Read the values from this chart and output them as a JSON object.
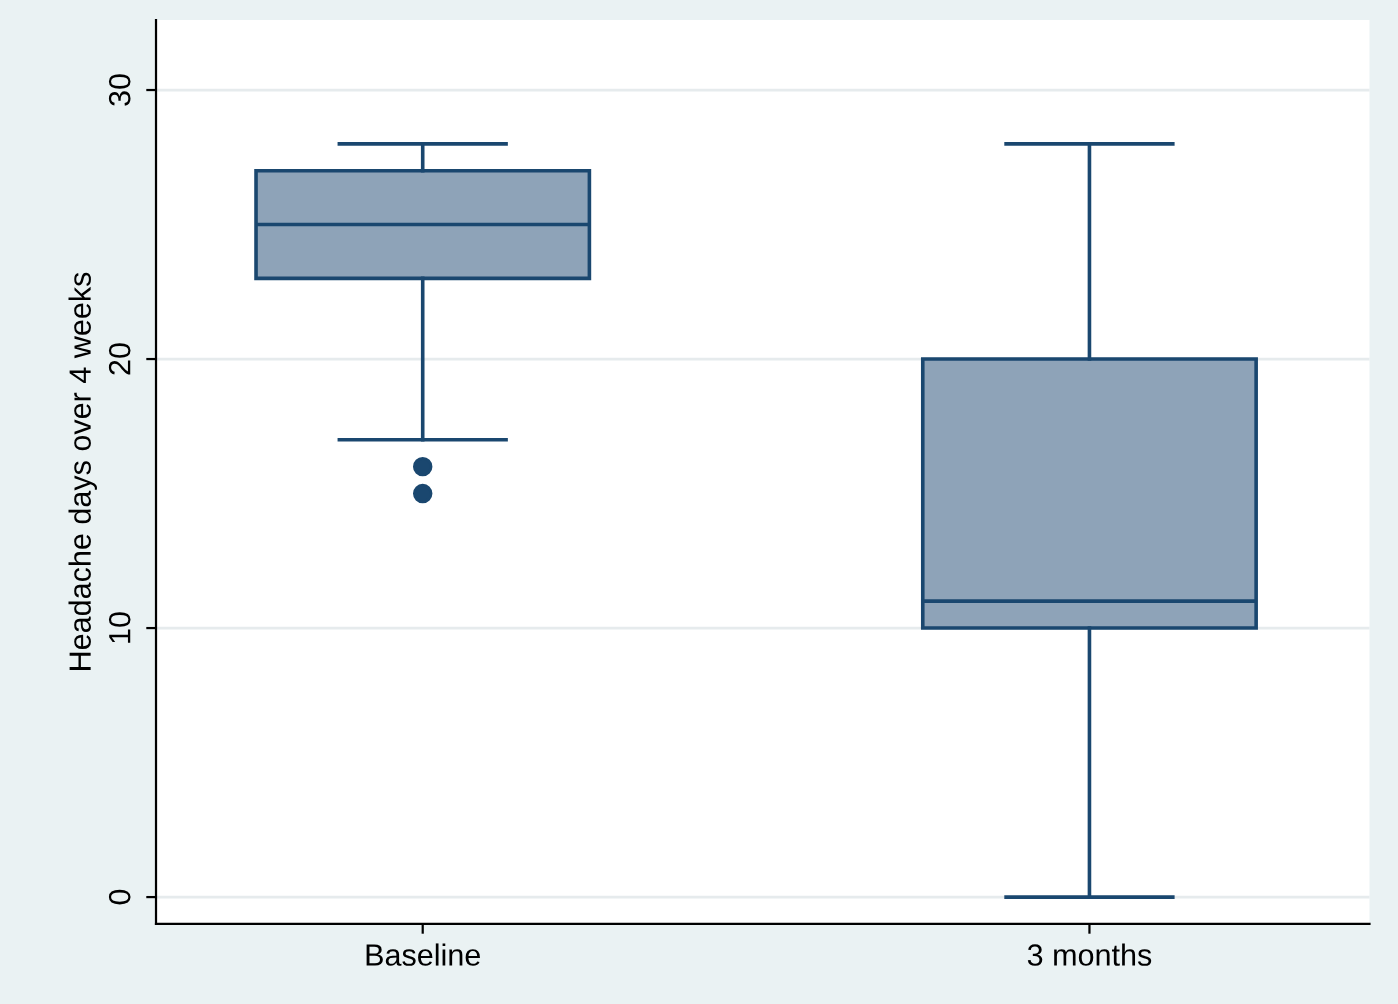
{
  "chart_data": {
    "type": "box",
    "ylabel": "Headache days over 4 weeks",
    "categories": [
      "Baseline",
      "3 months"
    ],
    "boxes": [
      {
        "low": 17,
        "q1": 23,
        "median": 25,
        "q3": 27,
        "high": 28,
        "outliers": [
          15,
          16
        ]
      },
      {
        "low": 0,
        "q1": 10,
        "median": 11,
        "q3": 20,
        "high": 28
      }
    ],
    "color": "#8ea3b8",
    "ylim": [
      -1,
      32.6
    ],
    "yticks": [
      0,
      10,
      20,
      30
    ],
    "grid": "y",
    "legend": false
  }
}
